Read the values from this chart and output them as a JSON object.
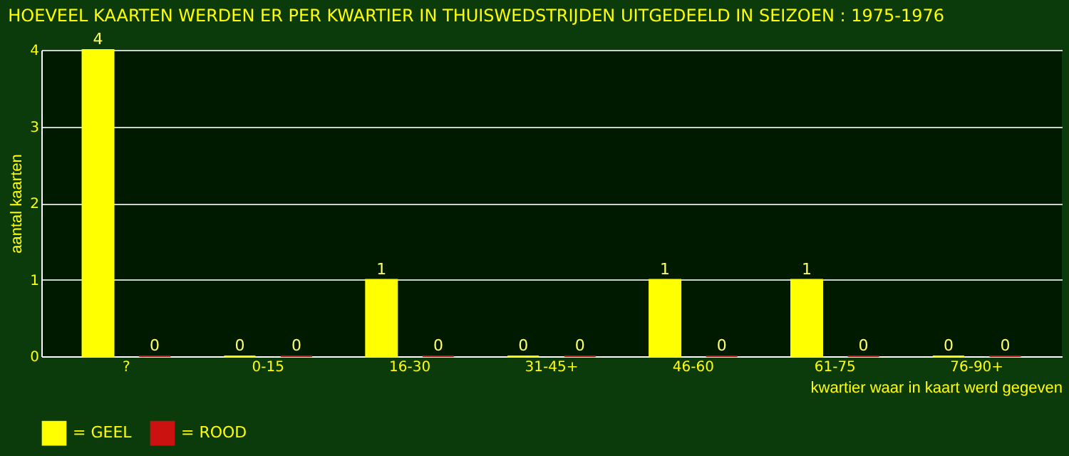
{
  "chart_data": {
    "type": "bar",
    "title": "HOEVEEL KAARTEN WERDEN ER PER KWARTIER IN THUISWEDSTRIJDEN UITGEDEELD IN SEIZOEN : 1975-1976",
    "xlabel": "kwartier waar in kaart werd gegeven",
    "ylabel": "aantal kaarten",
    "categories": [
      "?",
      "0-15",
      "16-30",
      "31-45+",
      "46-60",
      "61-75",
      "76-90+"
    ],
    "series": [
      {
        "name": "= GEEL",
        "color": "#ffff00",
        "values": [
          4,
          0,
          1,
          0,
          1,
          1,
          0
        ]
      },
      {
        "name": "= ROOD",
        "color": "#cc1111",
        "values": [
          0,
          0,
          0,
          0,
          0,
          0,
          0
        ]
      }
    ],
    "ylim": [
      0,
      4
    ],
    "yticks": [
      0,
      1,
      2,
      3,
      4
    ],
    "grid": "y",
    "legend": "bottom",
    "data_labels": true
  }
}
